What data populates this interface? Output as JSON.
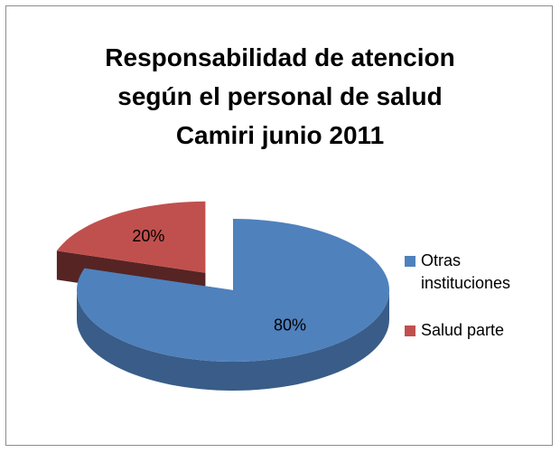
{
  "chart_data": {
    "type": "pie",
    "title": "Responsabilidad de atencion\nsegún el personal de salud\nCamiri junio 2011",
    "categories": [
      "Otras instituciones",
      "Salud parte"
    ],
    "values": [
      80,
      20
    ],
    "value_labels": [
      "80%",
      "20%"
    ],
    "colors": [
      "#4f81bd",
      "#c0504d"
    ],
    "legend": "right",
    "style": "3d",
    "exploded": [
      false,
      true
    ]
  }
}
